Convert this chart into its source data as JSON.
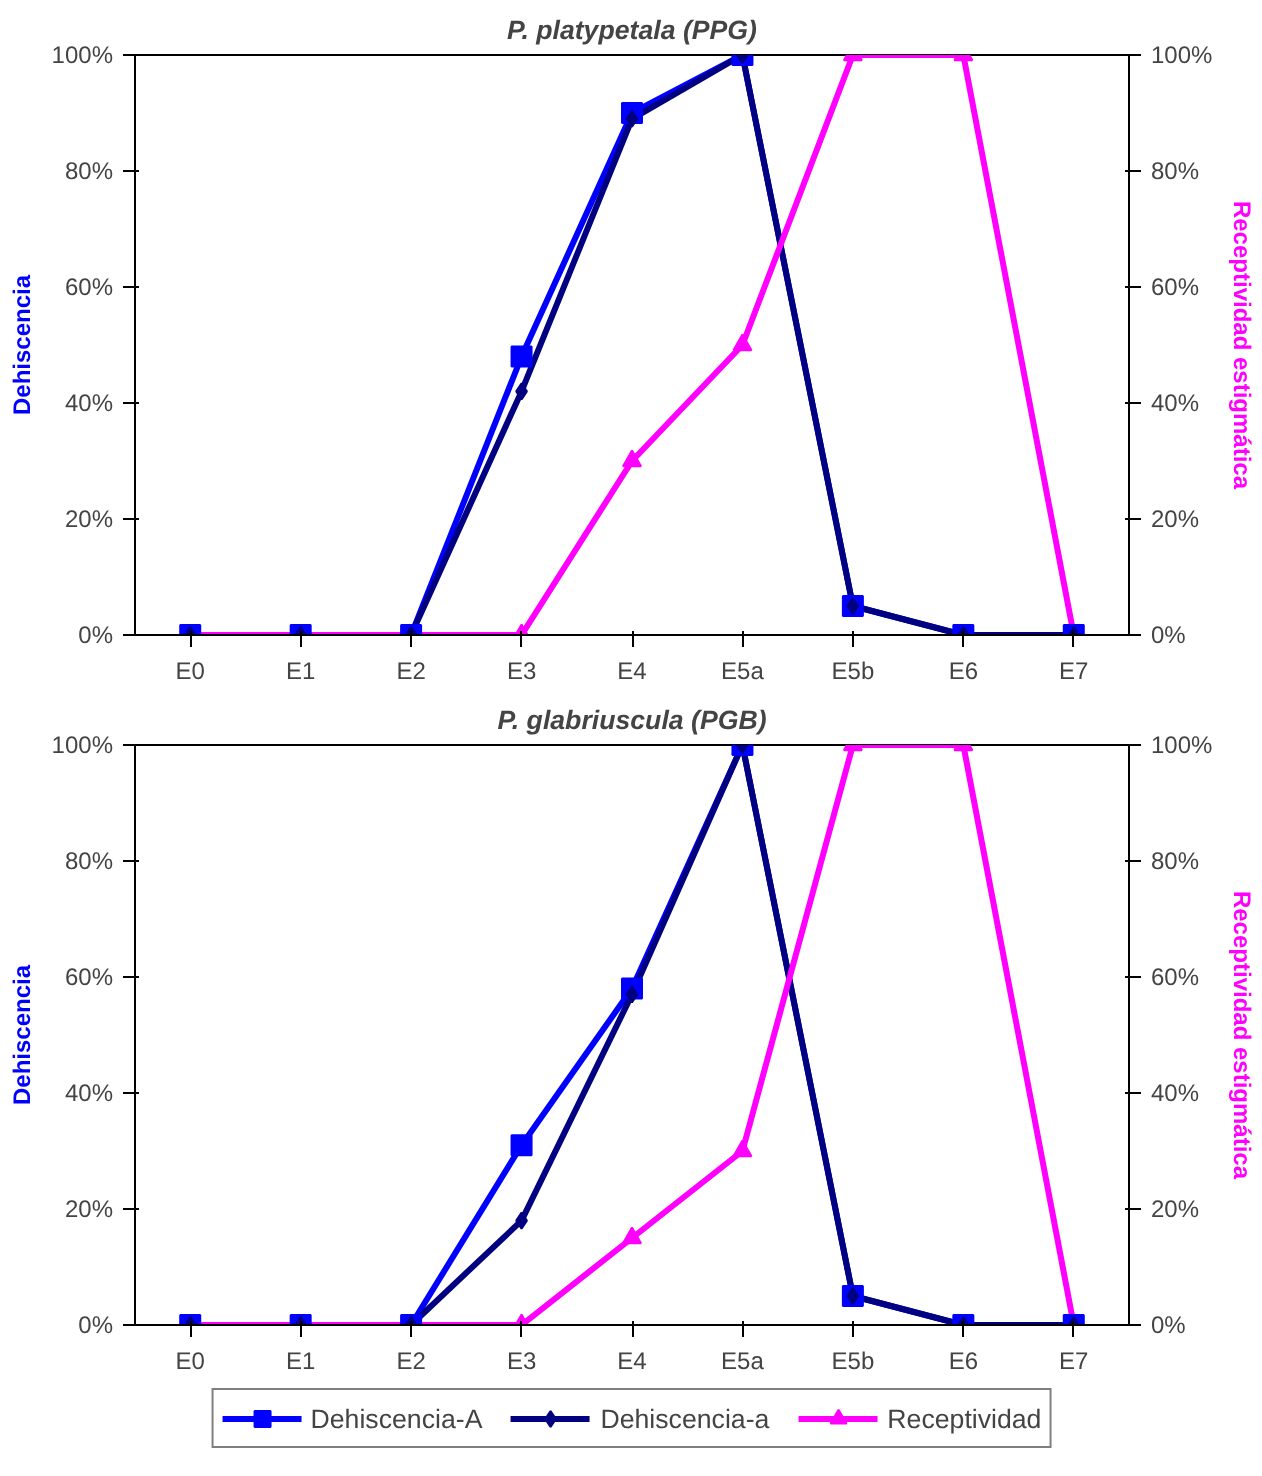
{
  "chart_data": [
    {
      "type": "line",
      "title": "P. platypetala (PPG)",
      "ylabel": "Dehiscencia",
      "y2label": "Receptividad estigmática",
      "categories": [
        "E0",
        "E1",
        "E2",
        "E3",
        "E4",
        "E5a",
        "E5b",
        "E6",
        "E7"
      ],
      "ylim": [
        0,
        100
      ],
      "yticks": [
        {
          "value": 0,
          "label": "0%"
        },
        {
          "value": 20,
          "label": "20%"
        },
        {
          "value": 40,
          "label": "40%"
        },
        {
          "value": 60,
          "label": "60%"
        },
        {
          "value": 80,
          "label": "80%"
        },
        {
          "value": 100,
          "label": "100%"
        }
      ],
      "y2lim": [
        0,
        100
      ],
      "y2ticks": [
        {
          "value": 0,
          "label": "0%"
        },
        {
          "value": 20,
          "label": "20%"
        },
        {
          "value": 40,
          "label": "40%"
        },
        {
          "value": 60,
          "label": "60%"
        },
        {
          "value": 80,
          "label": "80%"
        },
        {
          "value": 100,
          "label": "100%"
        }
      ],
      "grid": false,
      "series": [
        {
          "color": "#0000ff",
          "marker": "square",
          "values": [
            0,
            0,
            0,
            48,
            90,
            100,
            5,
            0,
            0
          ]
        },
        {
          "color": "#000080",
          "marker": "diamond",
          "values": [
            0,
            0,
            0,
            42,
            89,
            100,
            5,
            0,
            0
          ]
        },
        {
          "color": "#ff00ff",
          "marker": "triangle",
          "axis": "y2",
          "values": [
            0,
            0,
            0,
            0,
            30,
            50,
            100,
            100,
            0
          ]
        }
      ]
    },
    {
      "type": "line",
      "title": "P. glabriuscula (PGB)",
      "ylabel": "Dehiscencia",
      "y2label": "Receptividad estigmática",
      "categories": [
        "E0",
        "E1",
        "E2",
        "E3",
        "E4",
        "E5a",
        "E5b",
        "E6",
        "E7"
      ],
      "ylim": [
        0,
        100
      ],
      "yticks": [
        {
          "value": 0,
          "label": "0%"
        },
        {
          "value": 20,
          "label": "20%"
        },
        {
          "value": 40,
          "label": "40%"
        },
        {
          "value": 60,
          "label": "60%"
        },
        {
          "value": 80,
          "label": "80%"
        },
        {
          "value": 100,
          "label": "100%"
        }
      ],
      "y2lim": [
        0,
        100
      ],
      "y2ticks": [
        {
          "value": 0,
          "label": "0%"
        },
        {
          "value": 20,
          "label": "20%"
        },
        {
          "value": 40,
          "label": "40%"
        },
        {
          "value": 60,
          "label": "60%"
        },
        {
          "value": 80,
          "label": "80%"
        },
        {
          "value": 100,
          "label": "100%"
        }
      ],
      "grid": false,
      "legend": "bottom",
      "series": [
        {
          "name": "Dehiscencia-A",
          "color": "#0000ff",
          "marker": "square",
          "values": [
            0,
            0,
            0,
            31,
            58,
            100,
            5,
            0,
            0
          ]
        },
        {
          "name": "Dehiscencia-a",
          "color": "#000080",
          "marker": "diamond",
          "values": [
            0,
            0,
            0,
            18,
            57,
            100,
            5,
            0,
            0
          ]
        },
        {
          "name": "Receptividad",
          "color": "#ff00ff",
          "marker": "triangle",
          "axis": "y2",
          "values": [
            0,
            0,
            0,
            0,
            15,
            30,
            100,
            100,
            0
          ]
        }
      ]
    }
  ]
}
